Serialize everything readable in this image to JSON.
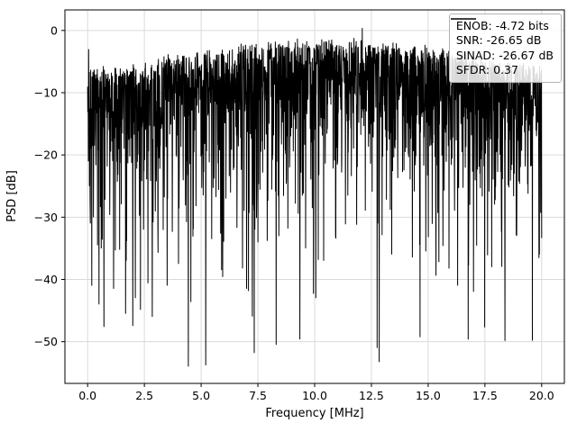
{
  "figure": {
    "background": "#ffffff",
    "grid_color": "#d9d9d9",
    "frame_color": "#000000",
    "line_color": "#000000"
  },
  "axes": {
    "xlabel": "Frequency [MHz]",
    "ylabel": "PSD [dB]",
    "xlim": [
      -1,
      21
    ],
    "ylim": [
      -56.7,
      3.3
    ],
    "xticks": [
      {
        "v": 0,
        "label": "0.0"
      },
      {
        "v": 2.5,
        "label": "2.5"
      },
      {
        "v": 5,
        "label": "5.0"
      },
      {
        "v": 7.5,
        "label": "7.5"
      },
      {
        "v": 10,
        "label": "10.0"
      },
      {
        "v": 12.5,
        "label": "12.5"
      },
      {
        "v": 15,
        "label": "15.0"
      },
      {
        "v": 17.5,
        "label": "17.5"
      },
      {
        "v": 20,
        "label": "20.0"
      }
    ],
    "yticks": [
      {
        "v": 0,
        "label": "0"
      },
      {
        "v": -10,
        "label": "−10"
      },
      {
        "v": -20,
        "label": "−20"
      },
      {
        "v": -30,
        "label": "−30"
      },
      {
        "v": -40,
        "label": "−40"
      },
      {
        "v": -50,
        "label": "−50"
      }
    ]
  },
  "legend": {
    "lines": [
      "ENOB: -4.72 bits",
      "SNR: -26.65 dB",
      "SINAD: -26.67 dB",
      "SFDR: 0.37"
    ]
  },
  "chart_data": {
    "type": "line",
    "title": "",
    "xlabel": "Frequency [MHz]",
    "ylabel": "PSD [dB]",
    "xlim": [
      -1,
      21
    ],
    "ylim": [
      -56.7,
      3.3
    ],
    "x_range_mhz": [
      0,
      20
    ],
    "grid": true,
    "legend_position": "upper right",
    "legend_entries": [
      "ENOB: -4.72 bits",
      "SNR: -26.65 dB",
      "SINAD: -26.67 dB",
      "SFDR: 0.37"
    ],
    "series": [
      {
        "name": "PSD",
        "color": "#000000",
        "description": "Dense noise-like power spectral density trace, 0-20 MHz. Upper envelope rises from about -7 dB at the band edges to about -1 dB near 10-12 MHz (one sample touches ~0 dB near 12 MHz). Main body of samples lies between -5 and -25 dB with frequent nulls down to the -30s/-40s and sparse deep nulls to about -54 dB.",
        "synthesis": {
          "seed": 42,
          "n_points": 2200,
          "envelope_peak_db": -1.7,
          "envelope_edge_db": -7.5,
          "envelope_center_mhz": 10.5,
          "envelope_sigma_mhz": 6.0,
          "exp_depth_mean_db": 7.5,
          "jitter_db": 1.5,
          "clip_min_db": -54
        },
        "notable_points": [
          {
            "x": 0.05,
            "y": -3.0
          },
          {
            "x": 0.12,
            "y": -31.0
          },
          {
            "x": 0.5,
            "y": -44.0
          },
          {
            "x": 1.15,
            "y": -41.5
          },
          {
            "x": 1.7,
            "y": -37.0
          },
          {
            "x": 2.1,
            "y": -43.0
          },
          {
            "x": 2.85,
            "y": -46.0
          },
          {
            "x": 3.5,
            "y": -41.0
          },
          {
            "x": 4.0,
            "y": -37.5
          },
          {
            "x": 5.2,
            "y": -53.8
          },
          {
            "x": 5.9,
            "y": -38.5
          },
          {
            "x": 7.0,
            "y": -41.5
          },
          {
            "x": 8.3,
            "y": -50.5
          },
          {
            "x": 9.6,
            "y": -35.0
          },
          {
            "x": 10.4,
            "y": -37.0
          },
          {
            "x": 12.1,
            "y": 0.4
          },
          {
            "x": 12.75,
            "y": -51.0
          },
          {
            "x": 13.4,
            "y": -36.0
          },
          {
            "x": 14.9,
            "y": -35.5
          },
          {
            "x": 16.3,
            "y": -41.0
          },
          {
            "x": 17.0,
            "y": -42.0
          },
          {
            "x": 17.8,
            "y": -38.0
          },
          {
            "x": 18.9,
            "y": -33.0
          },
          {
            "x": 19.9,
            "y": -36.0
          }
        ]
      }
    ]
  }
}
